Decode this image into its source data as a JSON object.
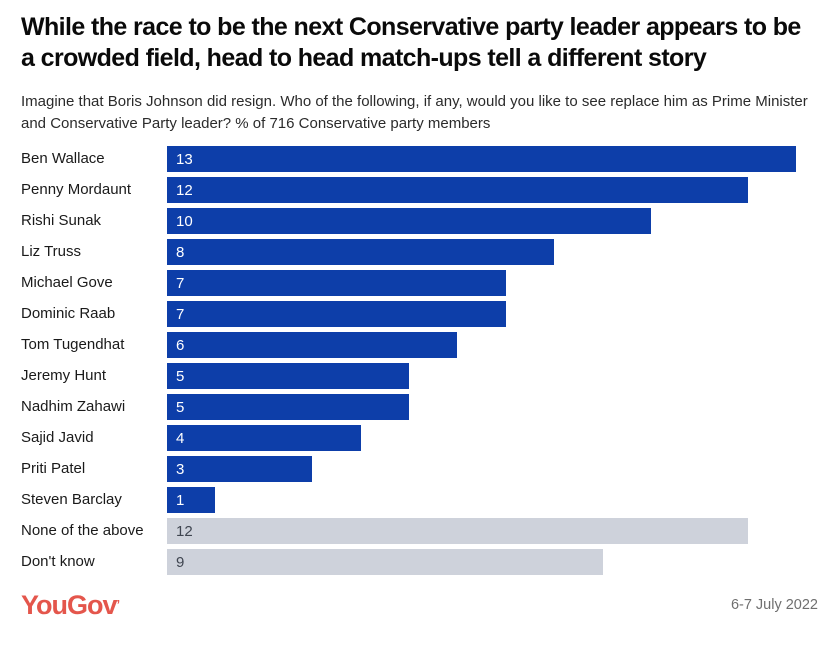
{
  "title": "While the race to be the next Conservative party leader appears to be a crowded field, head to head match-ups tell a different story",
  "subtitle": "Imagine that Boris Johnson did resign. Who of the following, if any, would you like to see replace him as Prime Minister and Conservative Party leader? % of 716 Conservative party members",
  "colors": {
    "title_text": "#0a0a0a",
    "subtitle_text": "#2b2b2b",
    "bar_blue": "#0d3ea9",
    "bar_gray": "#ced2db",
    "value_on_blue": "#ffffff",
    "value_on_gray": "#3f4550",
    "category_text": "#1a1a1a",
    "brand": "#e4564c",
    "date_text": "#6f6f6f"
  },
  "chart_data": {
    "type": "bar",
    "orientation": "horizontal",
    "value_unit": "%",
    "categories": [
      "Ben Wallace",
      "Penny Mordaunt",
      "Rishi Sunak",
      "Liz Truss",
      "Michael Gove",
      "Dominic Raab",
      "Tom Tugendhat",
      "Jeremy Hunt",
      "Nadhim Zahawi",
      "Sajid Javid",
      "Priti Patel",
      "Steven Barclay",
      "None of the above",
      "Don't know"
    ],
    "values": [
      13,
      12,
      10,
      8,
      7,
      7,
      6,
      5,
      5,
      4,
      3,
      1,
      12,
      9
    ],
    "bar_colors": [
      "blue",
      "blue",
      "blue",
      "blue",
      "blue",
      "blue",
      "blue",
      "blue",
      "blue",
      "blue",
      "blue",
      "blue",
      "gray",
      "gray"
    ],
    "value_labels": "inside-left",
    "xlim": [
      0,
      13.9
    ],
    "grid": false,
    "legend": "none"
  },
  "footer": {
    "brand": "YouGov",
    "brand_mark": "’",
    "date": "6-7 July 2022"
  }
}
